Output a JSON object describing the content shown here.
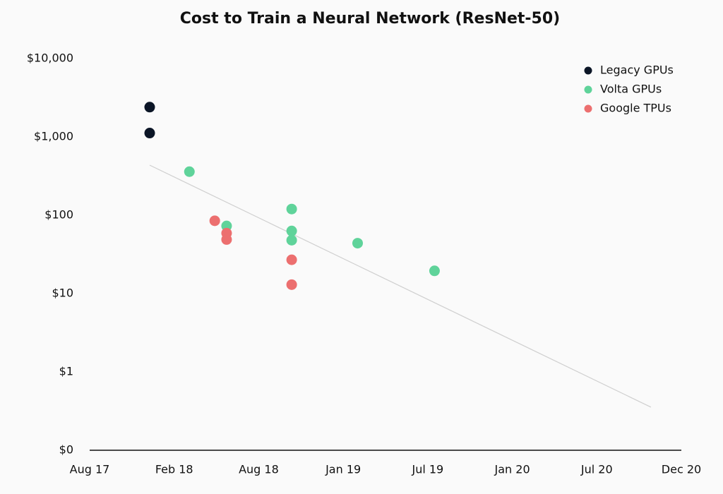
{
  "chart_data": {
    "type": "scatter",
    "title": "Cost to Train a Neural Network (ResNet-50)",
    "log_y": true,
    "grid": false,
    "legend": "top-right",
    "xlim": [
      0,
      7
    ],
    "xticks": [
      {
        "value": 0,
        "label": "Aug 17"
      },
      {
        "value": 1,
        "label": "Feb 18"
      },
      {
        "value": 2,
        "label": "Aug 18"
      },
      {
        "value": 3,
        "label": "Jan 19"
      },
      {
        "value": 4,
        "label": "Jul 19"
      },
      {
        "value": 5,
        "label": "Jan 20"
      },
      {
        "value": 6,
        "label": "Jul 20"
      },
      {
        "value": 7,
        "label": "Dec 20"
      }
    ],
    "ylim": [
      0.1,
      10000
    ],
    "yticks": [
      {
        "value": 0.1,
        "label": "$0"
      },
      {
        "value": 1,
        "label": "$1"
      },
      {
        "value": 10,
        "label": "$10"
      },
      {
        "value": 100,
        "label": "$100"
      },
      {
        "value": 1000,
        "label": "$1,000"
      },
      {
        "value": 10000,
        "label": "$10,000"
      }
    ],
    "series": [
      {
        "name": "Legacy GPUs",
        "color": "#0b1526",
        "x": [
          0.71,
          0.71
        ],
        "values": [
          2400,
          1120
        ]
      },
      {
        "name": "Volta GPUs",
        "color": "#5fd39a",
        "x": [
          1.18,
          1.62,
          2.39,
          2.39,
          2.39,
          3.17,
          4.08
        ],
        "values": [
          360,
          73,
          120,
          63,
          48,
          44,
          19.5
        ]
      },
      {
        "name": "Google TPUs",
        "color": "#ec6f6f",
        "x": [
          1.48,
          1.62,
          1.62,
          2.39,
          2.39
        ],
        "values": [
          85,
          59,
          49,
          27,
          13
        ]
      }
    ],
    "trendline": {
      "color": "#cfcfcf",
      "x": [
        0.71,
        6.64
      ],
      "values": [
        436,
        0.355
      ]
    }
  }
}
